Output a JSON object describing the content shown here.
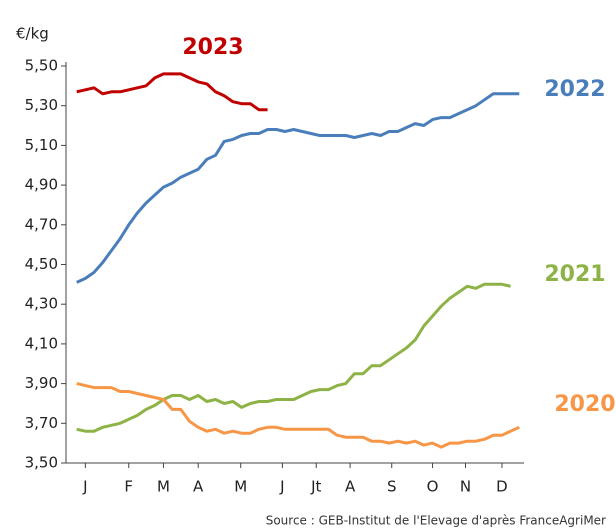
{
  "chart_data": {
    "type": "line",
    "y_label": "€/kg",
    "source": "Source : GEB-Institut de l'Elevage d'après FranceAgriMer",
    "xlim": [
      0,
      53
    ],
    "xticks": [
      {
        "value": 2,
        "label": "J"
      },
      {
        "value": 7,
        "label": "F"
      },
      {
        "value": 11,
        "label": "M"
      },
      {
        "value": 15,
        "label": "A"
      },
      {
        "value": 19.9,
        "label": "M"
      },
      {
        "value": 24.7,
        "label": "J"
      },
      {
        "value": 28.6,
        "label": "Jt"
      },
      {
        "value": 32.5,
        "label": "A"
      },
      {
        "value": 37.3,
        "label": "S"
      },
      {
        "value": 42,
        "label": "O"
      },
      {
        "value": 45.8,
        "label": "N"
      },
      {
        "value": 50,
        "label": "D"
      }
    ],
    "ylim": [
      3.5,
      5.5
    ],
    "yticks": [
      {
        "value": 3.5,
        "label": "3,50"
      },
      {
        "value": 3.7,
        "label": "3,70"
      },
      {
        "value": 3.9,
        "label": "3,90"
      },
      {
        "value": 4.1,
        "label": "4,10"
      },
      {
        "value": 4.3,
        "label": "4,30"
      },
      {
        "value": 4.5,
        "label": "4,50"
      },
      {
        "value": 4.7,
        "label": "4,70"
      },
      {
        "value": 4.9,
        "label": "4,90"
      },
      {
        "value": 5.1,
        "label": "5,10"
      },
      {
        "value": 5.3,
        "label": "5,30"
      },
      {
        "value": 5.5,
        "label": "5,50"
      }
    ],
    "series": [
      {
        "name": "2023",
        "color": "#c00000",
        "x": [
          1,
          2,
          3,
          4,
          5,
          6,
          7,
          8,
          9,
          10,
          11,
          12,
          13,
          14,
          15,
          16,
          17,
          18,
          19,
          20,
          21,
          22,
          23
        ],
        "values": [
          5.37,
          5.38,
          5.39,
          5.36,
          5.37,
          5.37,
          5.38,
          5.39,
          5.4,
          5.44,
          5.46,
          5.46,
          5.46,
          5.44,
          5.42,
          5.41,
          5.37,
          5.35,
          5.32,
          5.31,
          5.31,
          5.28,
          5.28
        ]
      },
      {
        "name": "2022",
        "color": "#4a7ebb",
        "x": [
          1,
          2,
          3,
          4,
          5,
          6,
          7,
          8,
          9,
          10,
          11,
          12,
          13,
          14,
          15,
          16,
          17,
          18,
          19,
          20,
          21,
          22,
          23,
          24,
          25,
          26,
          27,
          28,
          29,
          30,
          31,
          32,
          33,
          34,
          35,
          36,
          37,
          38,
          39,
          40,
          41,
          42,
          43,
          44,
          45,
          46,
          47,
          48,
          49,
          50,
          51,
          52
        ],
        "values": [
          4.41,
          4.43,
          4.46,
          4.51,
          4.57,
          4.63,
          4.7,
          4.76,
          4.81,
          4.85,
          4.89,
          4.91,
          4.94,
          4.96,
          4.98,
          5.03,
          5.05,
          5.12,
          5.13,
          5.15,
          5.16,
          5.16,
          5.18,
          5.18,
          5.17,
          5.18,
          5.17,
          5.16,
          5.15,
          5.15,
          5.15,
          5.15,
          5.14,
          5.15,
          5.16,
          5.15,
          5.17,
          5.17,
          5.19,
          5.21,
          5.2,
          5.23,
          5.24,
          5.24,
          5.26,
          5.28,
          5.3,
          5.33,
          5.36,
          5.36,
          5.36,
          5.36
        ]
      },
      {
        "name": "2021",
        "color": "#8db346",
        "x": [
          1,
          2,
          3,
          4,
          5,
          6,
          7,
          8,
          9,
          10,
          11,
          12,
          13,
          14,
          15,
          16,
          17,
          18,
          19,
          20,
          21,
          22,
          23,
          24,
          25,
          26,
          27,
          28,
          29,
          30,
          31,
          32,
          33,
          34,
          35,
          36,
          37,
          38,
          39,
          40,
          41,
          42,
          43,
          44,
          45,
          46,
          47,
          48,
          49,
          50,
          51
        ],
        "values": [
          3.67,
          3.66,
          3.66,
          3.68,
          3.69,
          3.7,
          3.72,
          3.74,
          3.77,
          3.79,
          3.82,
          3.84,
          3.84,
          3.82,
          3.84,
          3.81,
          3.82,
          3.8,
          3.81,
          3.78,
          3.8,
          3.81,
          3.81,
          3.82,
          3.82,
          3.82,
          3.84,
          3.86,
          3.87,
          3.87,
          3.89,
          3.9,
          3.95,
          3.95,
          3.99,
          3.99,
          4.02,
          4.05,
          4.08,
          4.12,
          4.19,
          4.24,
          4.29,
          4.33,
          4.36,
          4.39,
          4.38,
          4.4,
          4.4,
          4.4,
          4.39
        ]
      },
      {
        "name": "2020",
        "color": "#f79646",
        "x": [
          1,
          2,
          3,
          4,
          5,
          6,
          7,
          8,
          9,
          10,
          11,
          12,
          13,
          14,
          15,
          16,
          17,
          18,
          19,
          20,
          21,
          22,
          23,
          24,
          25,
          26,
          27,
          28,
          29,
          30,
          31,
          32,
          33,
          34,
          35,
          36,
          37,
          38,
          39,
          40,
          41,
          42,
          43,
          44,
          45,
          46,
          47,
          48,
          49,
          50,
          51,
          52
        ],
        "values": [
          3.9,
          3.89,
          3.88,
          3.88,
          3.88,
          3.86,
          3.86,
          3.85,
          3.84,
          3.83,
          3.82,
          3.77,
          3.77,
          3.71,
          3.68,
          3.66,
          3.67,
          3.65,
          3.66,
          3.65,
          3.65,
          3.67,
          3.68,
          3.68,
          3.67,
          3.67,
          3.67,
          3.67,
          3.67,
          3.67,
          3.64,
          3.63,
          3.63,
          3.63,
          3.61,
          3.61,
          3.6,
          3.61,
          3.6,
          3.61,
          3.59,
          3.6,
          3.58,
          3.6,
          3.6,
          3.61,
          3.61,
          3.62,
          3.64,
          3.64,
          3.66,
          3.68
        ]
      }
    ]
  }
}
